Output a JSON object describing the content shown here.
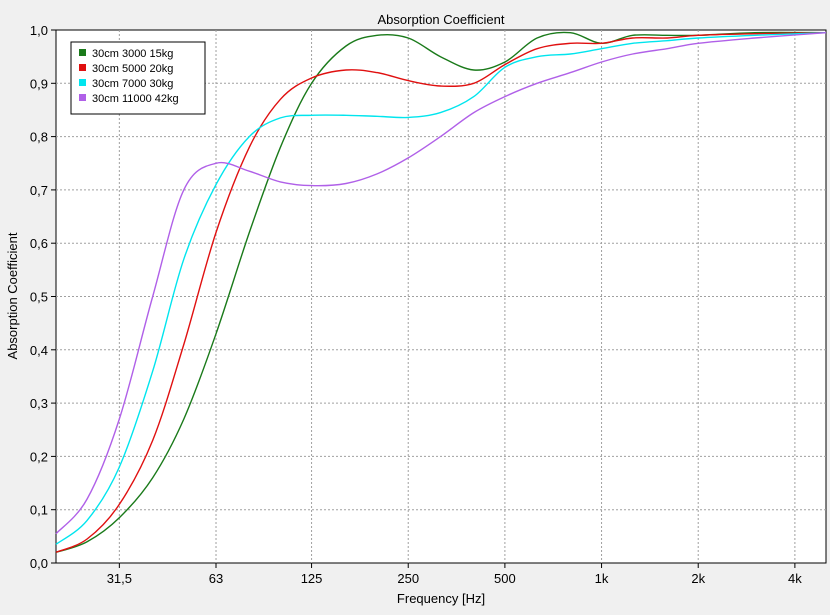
{
  "chart_data": {
    "type": "line",
    "title": "Absorption Coefficient",
    "xlabel": "Frequency [Hz]",
    "ylabel": "Absorption Coefficient",
    "x_scale": "log",
    "xlim": [
      20,
      5000
    ],
    "ylim": [
      0,
      1
    ],
    "grid": true,
    "legend_position": "top-left",
    "x_ticks": [
      {
        "value": 31.5,
        "label": "31,5"
      },
      {
        "value": 63,
        "label": "63"
      },
      {
        "value": 125,
        "label": "125"
      },
      {
        "value": 250,
        "label": "250"
      },
      {
        "value": 500,
        "label": "500"
      },
      {
        "value": 1000,
        "label": "1k"
      },
      {
        "value": 2000,
        "label": "2k"
      },
      {
        "value": 4000,
        "label": "4k"
      }
    ],
    "y_ticks": [
      {
        "value": 0.0,
        "label": "0,0"
      },
      {
        "value": 0.1,
        "label": "0,1"
      },
      {
        "value": 0.2,
        "label": "0,2"
      },
      {
        "value": 0.3,
        "label": "0,3"
      },
      {
        "value": 0.4,
        "label": "0,4"
      },
      {
        "value": 0.5,
        "label": "0,5"
      },
      {
        "value": 0.6,
        "label": "0,6"
      },
      {
        "value": 0.7,
        "label": "0,7"
      },
      {
        "value": 0.8,
        "label": "0,8"
      },
      {
        "value": 0.9,
        "label": "0,9"
      },
      {
        "value": 1.0,
        "label": "1,0"
      }
    ],
    "series": [
      {
        "name": "30cm 3000 15kg",
        "color": "#1a7a1a",
        "points": [
          [
            20,
            0.02
          ],
          [
            25,
            0.04
          ],
          [
            31.5,
            0.085
          ],
          [
            40,
            0.16
          ],
          [
            50,
            0.27
          ],
          [
            63,
            0.43
          ],
          [
            80,
            0.62
          ],
          [
            100,
            0.78
          ],
          [
            125,
            0.9
          ],
          [
            160,
            0.97
          ],
          [
            200,
            0.99
          ],
          [
            250,
            0.985
          ],
          [
            315,
            0.95
          ],
          [
            400,
            0.925
          ],
          [
            500,
            0.94
          ],
          [
            630,
            0.985
          ],
          [
            800,
            0.995
          ],
          [
            1000,
            0.975
          ],
          [
            1250,
            0.99
          ],
          [
            1600,
            0.99
          ],
          [
            2000,
            0.99
          ],
          [
            3000,
            0.995
          ],
          [
            5000,
            0.995
          ]
        ]
      },
      {
        "name": "30cm 5000 20kg",
        "color": "#e01010",
        "points": [
          [
            20,
            0.02
          ],
          [
            25,
            0.045
          ],
          [
            31.5,
            0.11
          ],
          [
            40,
            0.23
          ],
          [
            50,
            0.41
          ],
          [
            63,
            0.62
          ],
          [
            80,
            0.78
          ],
          [
            100,
            0.87
          ],
          [
            125,
            0.91
          ],
          [
            160,
            0.925
          ],
          [
            200,
            0.92
          ],
          [
            250,
            0.905
          ],
          [
            315,
            0.895
          ],
          [
            400,
            0.9
          ],
          [
            500,
            0.935
          ],
          [
            630,
            0.965
          ],
          [
            800,
            0.975
          ],
          [
            1000,
            0.975
          ],
          [
            1250,
            0.985
          ],
          [
            1600,
            0.985
          ],
          [
            2000,
            0.99
          ],
          [
            3000,
            0.993
          ],
          [
            5000,
            0.995
          ]
        ]
      },
      {
        "name": "30cm 7000 30kg",
        "color": "#00e5ee",
        "points": [
          [
            20,
            0.035
          ],
          [
            25,
            0.08
          ],
          [
            31.5,
            0.18
          ],
          [
            40,
            0.36
          ],
          [
            50,
            0.57
          ],
          [
            63,
            0.71
          ],
          [
            80,
            0.8
          ],
          [
            100,
            0.835
          ],
          [
            125,
            0.84
          ],
          [
            160,
            0.84
          ],
          [
            200,
            0.838
          ],
          [
            250,
            0.836
          ],
          [
            315,
            0.845
          ],
          [
            400,
            0.875
          ],
          [
            500,
            0.93
          ],
          [
            630,
            0.95
          ],
          [
            800,
            0.955
          ],
          [
            1000,
            0.965
          ],
          [
            1250,
            0.975
          ],
          [
            1600,
            0.98
          ],
          [
            2000,
            0.985
          ],
          [
            3000,
            0.99
          ],
          [
            5000,
            0.995
          ]
        ]
      },
      {
        "name": "30cm 11000 42kg",
        "color": "#b060e8",
        "points": [
          [
            20,
            0.055
          ],
          [
            25,
            0.12
          ],
          [
            31.5,
            0.27
          ],
          [
            40,
            0.5
          ],
          [
            50,
            0.7
          ],
          [
            63,
            0.75
          ],
          [
            80,
            0.735
          ],
          [
            100,
            0.715
          ],
          [
            125,
            0.708
          ],
          [
            160,
            0.712
          ],
          [
            200,
            0.73
          ],
          [
            250,
            0.76
          ],
          [
            315,
            0.8
          ],
          [
            400,
            0.845
          ],
          [
            500,
            0.875
          ],
          [
            630,
            0.9
          ],
          [
            800,
            0.92
          ],
          [
            1000,
            0.94
          ],
          [
            1250,
            0.955
          ],
          [
            1600,
            0.965
          ],
          [
            2000,
            0.975
          ],
          [
            3000,
            0.985
          ],
          [
            5000,
            0.995
          ]
        ]
      }
    ]
  }
}
